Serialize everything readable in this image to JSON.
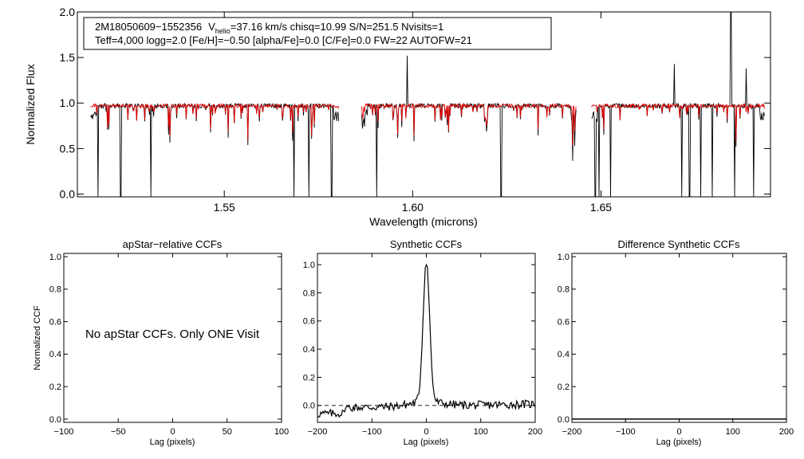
{
  "chart_data": [
    {
      "type": "line",
      "id": "spectrum",
      "annotation_line1": {
        "star": "2M18050609−1552356",
        "v_prefix": "V",
        "v_sub": "helio",
        "v_rest": "=37.16 km/s  chisq=10.99  S/N=251.5  Nvisits=1"
      },
      "annotation_line2": "Teff=4,000 logg=2.0 [Fe/H]=−0.50 [alpha/Fe]=0.0 [C/Fe]=0.0 FW=22 AUTOFW=21",
      "xlabel": "Wavelength (microns)",
      "ylabel": "Normalized Flux",
      "xlim": [
        1.511,
        1.695
      ],
      "ylim": [
        -0.03,
        2.0
      ],
      "xticks": [
        1.55,
        1.6,
        1.65
      ],
      "xtick_labels": [
        "1.55",
        "1.60",
        "1.65"
      ],
      "yticks": [
        0.0,
        0.5,
        1.0,
        1.5,
        2.0
      ],
      "ytick_labels": [
        "0.0",
        "0.5",
        "1.0",
        "1.5",
        "2.0"
      ],
      "chips": [
        [
          1.5145,
          1.5805
        ],
        [
          1.5865,
          1.6435
        ],
        [
          1.6475,
          1.6935
        ]
      ],
      "continuum": 0.97,
      "deep_lines": [
        1.5165,
        1.5225,
        1.5305,
        1.5685,
        1.5725,
        1.5785,
        1.5805,
        1.5905,
        1.6235,
        1.6485,
        1.6495,
        1.6525,
        1.6715,
        1.6735,
        1.6765,
        1.6795,
        1.6855,
        1.6905
      ],
      "emission_spikes": [
        [
          1.5985,
          1.52
        ],
        [
          1.6695,
          1.43
        ],
        [
          1.6845,
          2.0
        ],
        [
          1.6885,
          1.38
        ]
      ],
      "series": [
        {
          "color": "#000000"
        },
        {
          "color": "#e00000"
        }
      ]
    },
    {
      "type": "line",
      "id": "apstar-ccf",
      "title": "apStar−relative CCFs",
      "xlabel": "Lag (pixels)",
      "ylabel": "Normalized CCF",
      "xlim": [
        -100,
        100
      ],
      "ylim": [
        -0.02,
        1.02
      ],
      "xticks": [
        -100,
        -50,
        0,
        50,
        100
      ],
      "xtick_labels": [
        "−100",
        "−50",
        "0",
        "50",
        "100"
      ],
      "yticks": [
        0.0,
        0.2,
        0.4,
        0.6,
        0.8,
        1.0
      ],
      "ytick_labels": [
        "0.0",
        "0.2",
        "0.4",
        "0.6",
        "0.8",
        "1.0"
      ],
      "message": "No apStar CCFs.  Only ONE Visit"
    },
    {
      "type": "line",
      "id": "synthetic-ccf",
      "title": "Synthetic CCFs",
      "xlabel": "Lag (pixels)",
      "xlim": [
        -200,
        200
      ],
      "ylim": [
        -0.12,
        1.08
      ],
      "xticks": [
        -200,
        -100,
        0,
        100,
        200
      ],
      "xtick_labels": [
        "−200",
        "−100",
        "0",
        "100",
        "200"
      ],
      "yticks": [
        0.0,
        0.2,
        0.4,
        0.6,
        0.8,
        1.0
      ],
      "ytick_labels": [
        "0.0",
        "0.2",
        "0.4",
        "0.6",
        "0.8",
        "1.0"
      ],
      "zero_line": true,
      "peak": {
        "x": 0,
        "y": 1.0,
        "width": 6
      }
    },
    {
      "type": "line",
      "id": "difference-ccf",
      "title": "Difference Synthetic CCFs",
      "xlabel": "Lag (pixels)",
      "xlim": [
        -200,
        200
      ],
      "ylim": [
        -0.02,
        1.02
      ],
      "xticks": [
        -200,
        -100,
        0,
        100,
        200
      ],
      "xtick_labels": [
        "−200",
        "−100",
        "0",
        "100",
        "200"
      ],
      "yticks": [
        0.0,
        0.2,
        0.4,
        0.6,
        0.8,
        1.0
      ],
      "ytick_labels": [
        "0.0",
        "0.2",
        "0.4",
        "0.6",
        "0.8",
        "1.0"
      ],
      "baseline": 0.0
    }
  ]
}
